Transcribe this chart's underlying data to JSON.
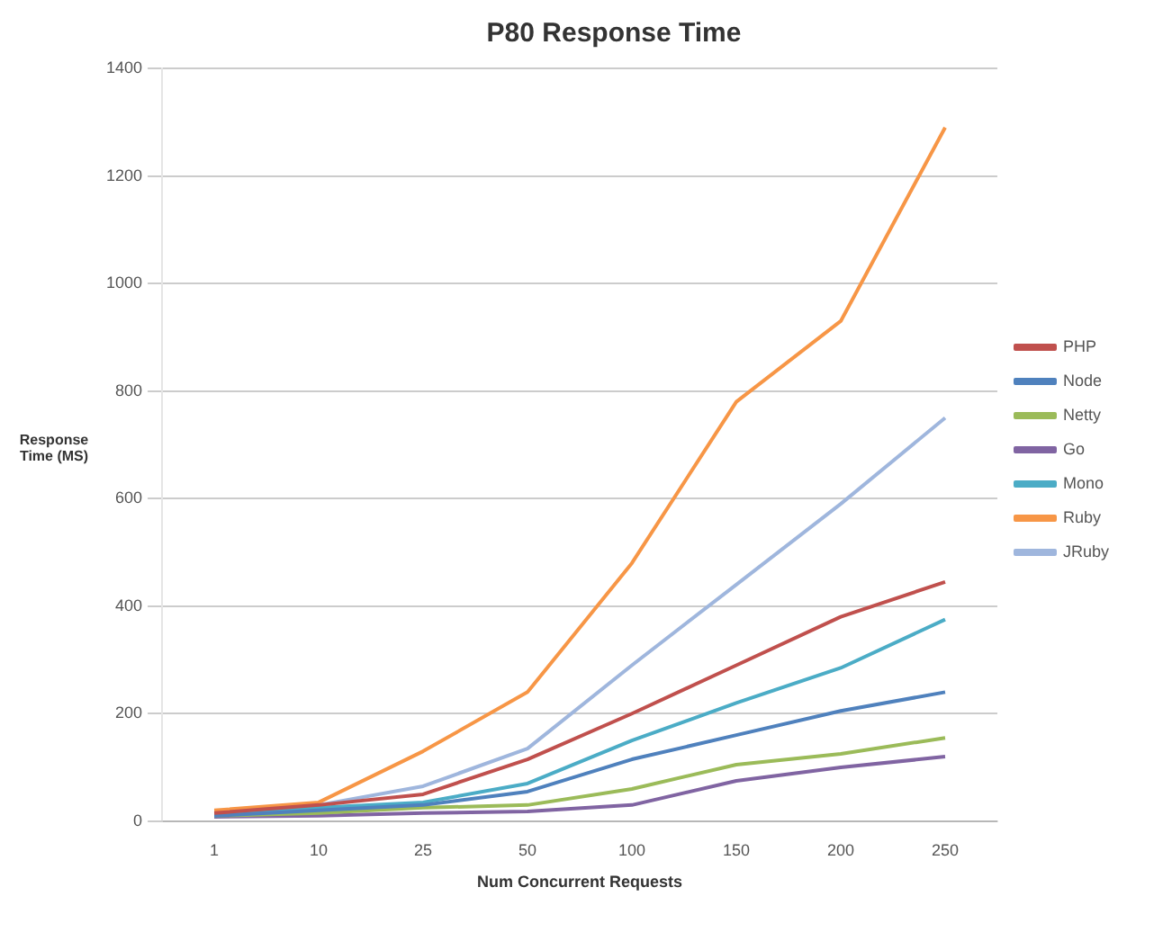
{
  "chart_data": {
    "type": "line",
    "title": "P80 Response Time",
    "xlabel": "Num Concurrent Requests",
    "ylabel": "Response Time (MS)",
    "categories": [
      "1",
      "10",
      "25",
      "50",
      "100",
      "150",
      "200",
      "250"
    ],
    "series": [
      {
        "name": "PHP",
        "color": "#c0504d",
        "values": [
          15,
          30,
          50,
          115,
          200,
          290,
          380,
          445
        ]
      },
      {
        "name": "Node",
        "color": "#4f81bd",
        "values": [
          10,
          20,
          30,
          55,
          115,
          160,
          205,
          240
        ]
      },
      {
        "name": "Netty",
        "color": "#9bbb59",
        "values": [
          10,
          15,
          25,
          30,
          60,
          105,
          125,
          155
        ]
      },
      {
        "name": "Go",
        "color": "#8064a2",
        "values": [
          8,
          10,
          15,
          18,
          30,
          75,
          100,
          120
        ]
      },
      {
        "name": "Mono",
        "color": "#4bacc6",
        "values": [
          12,
          25,
          35,
          70,
          150,
          220,
          285,
          375
        ]
      },
      {
        "name": "Ruby",
        "color": "#f79646",
        "values": [
          20,
          35,
          130,
          240,
          480,
          780,
          930,
          1290
        ]
      },
      {
        "name": "JRuby",
        "color": "#9fb6dd",
        "values": [
          null,
          30,
          65,
          135,
          290,
          440,
          590,
          750
        ]
      }
    ],
    "ylim": [
      0,
      1400
    ],
    "yticks": [
      0,
      200,
      400,
      600,
      800,
      1000,
      1200,
      1400
    ],
    "grid": "y",
    "legend": "right",
    "marker": "none",
    "line_style": "solid"
  }
}
